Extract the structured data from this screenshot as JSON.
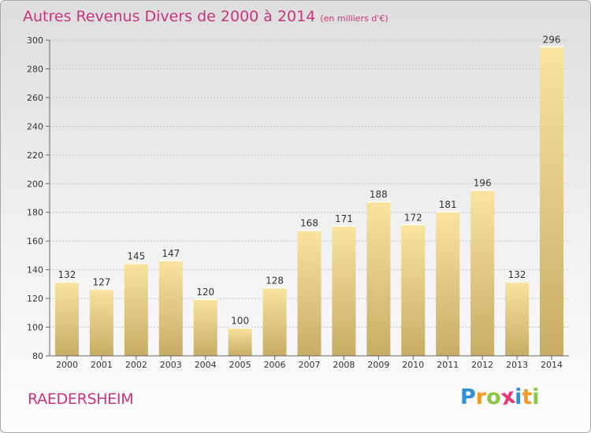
{
  "title": {
    "main": "Autres Revenus Divers de 2000 à 2014",
    "sub": "(en milliers d'€)"
  },
  "place": "RAEDERSHEIM",
  "logo": {
    "letters": [
      "P",
      "r",
      "o",
      "x",
      "i",
      "t",
      "i"
    ],
    "colors": [
      "#2f8fd8",
      "#f39a1e",
      "#8cc63f",
      "#e8366e",
      "#2f8fd8",
      "#f39a1e",
      "#8cc63f"
    ]
  },
  "colors": {
    "bar_light": "#f8e4a0",
    "bar_dark": "#c9ac66",
    "accent": "#c8347d"
  },
  "chart_data": {
    "type": "bar",
    "categories": [
      "2000",
      "2001",
      "2002",
      "2003",
      "2004",
      "2005",
      "2006",
      "2007",
      "2008",
      "2009",
      "2010",
      "2011",
      "2012",
      "2013",
      "2014"
    ],
    "values": [
      132,
      127,
      145,
      147,
      120,
      100,
      128,
      168,
      171,
      188,
      172,
      181,
      196,
      132,
      296
    ],
    "value_labels": [
      "132",
      "127",
      "145",
      "147",
      "120",
      "100",
      "128",
      "168",
      "171",
      "188",
      "172",
      "181",
      "196",
      "132",
      "296"
    ],
    "ylim": [
      80,
      300
    ],
    "yticks": [
      80,
      100,
      120,
      140,
      160,
      180,
      200,
      220,
      240,
      260,
      280,
      300
    ],
    "grid": true
  }
}
